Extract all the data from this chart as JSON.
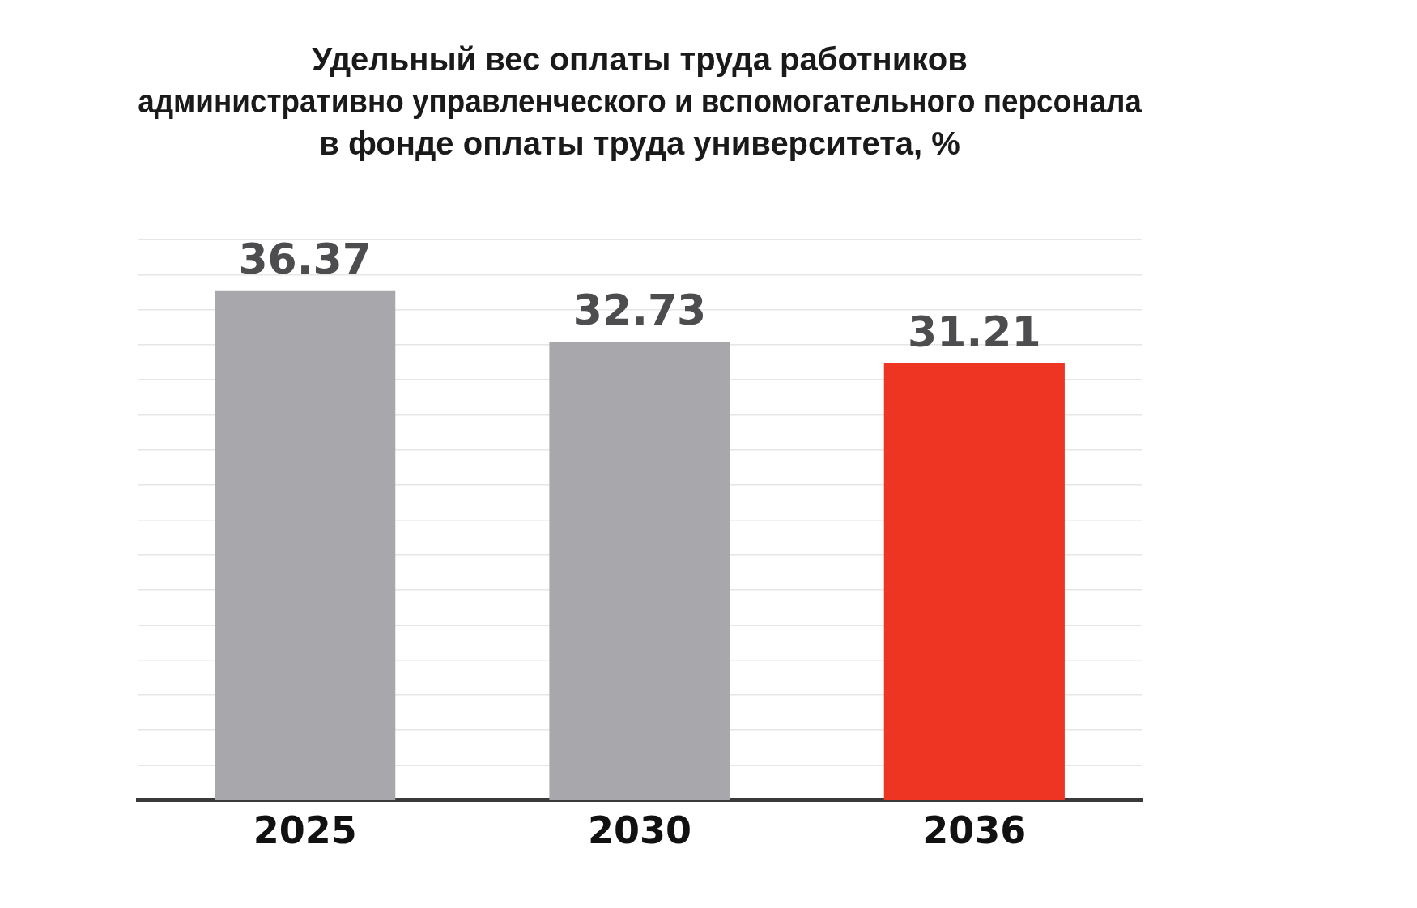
{
  "chart_data": {
    "type": "bar",
    "title": "Удельный вес оплаты труда работников\nадминистративно управленческого и вспомогательного персонала\nв фонде оплаты труда университета, %",
    "categories": [
      "2025",
      "2030",
      "2036"
    ],
    "values": [
      36.37,
      32.73,
      31.21
    ],
    "colors": [
      "#a8a7ab",
      "#a8a7ab",
      "#ee3524"
    ],
    "ylim": [
      0,
      40
    ],
    "yticks": [
      {
        "value": 0,
        "label": null
      },
      {
        "value": 2.5,
        "label": null
      },
      {
        "value": 5,
        "label": null
      },
      {
        "value": 7.5,
        "label": null
      },
      {
        "value": 10,
        "label": null
      },
      {
        "value": 12.5,
        "label": null
      },
      {
        "value": 15,
        "label": null
      },
      {
        "value": 17.5,
        "label": null
      },
      {
        "value": 20,
        "label": null
      },
      {
        "value": 22.5,
        "label": null
      },
      {
        "value": 25,
        "label": null
      },
      {
        "value": 27.5,
        "label": null
      },
      {
        "value": 30,
        "label": null
      },
      {
        "value": 32.5,
        "label": null
      },
      {
        "value": 35,
        "label": null
      },
      {
        "value": 37.5,
        "label": null
      },
      {
        "value": 40,
        "label": null
      }
    ],
    "grid": "y",
    "tick_labels": "x",
    "data_labels": true
  }
}
